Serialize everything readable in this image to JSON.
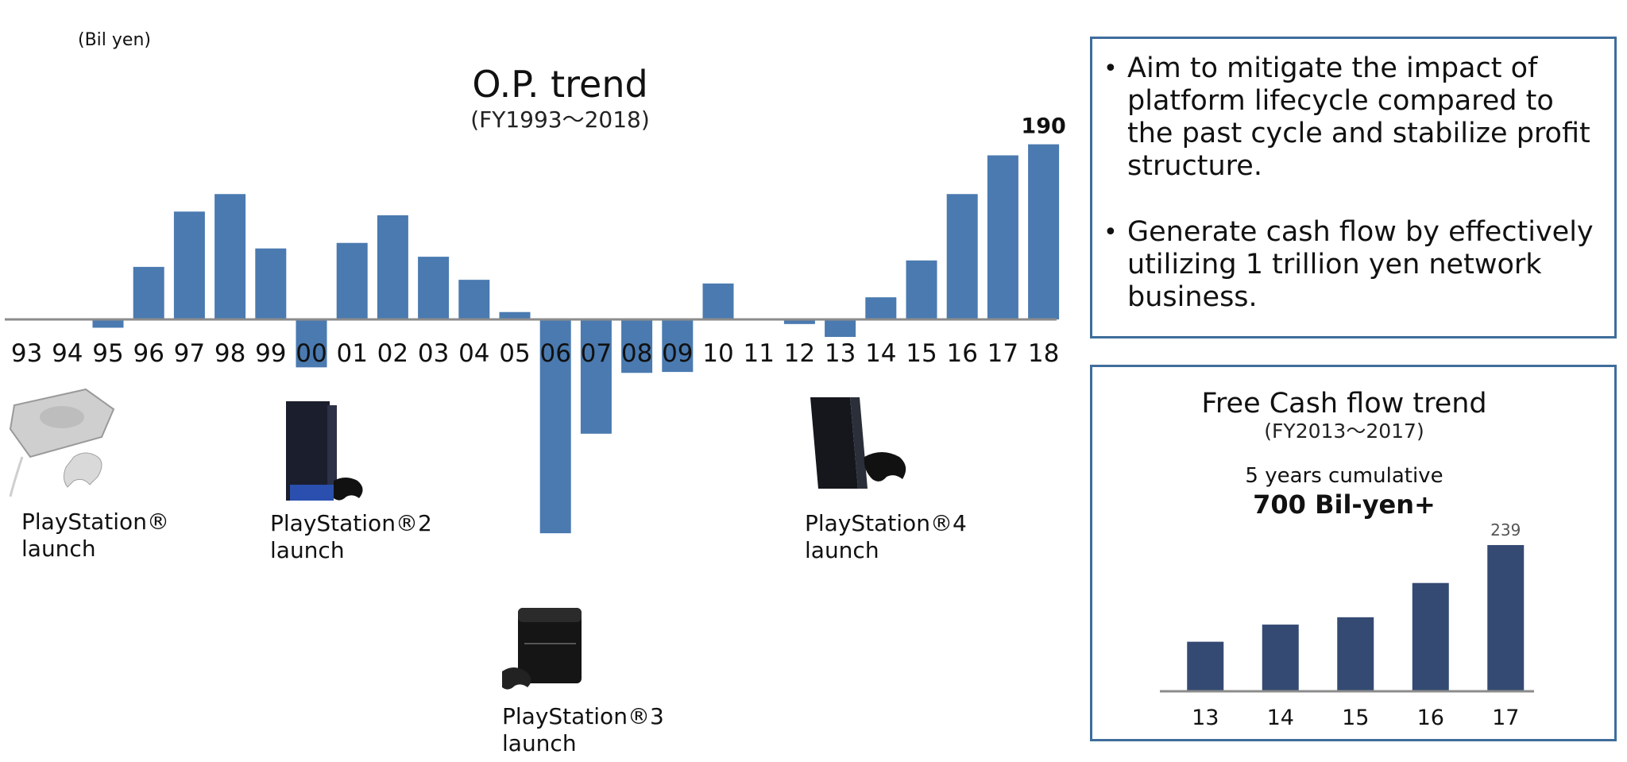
{
  "unit_label": "(Bil yen)",
  "chart_data": [
    {
      "type": "bar",
      "title": "O.P. trend",
      "subtitle": "(FY1993～2018)",
      "ylabel": "(Bil yen)",
      "categories": [
        "93",
        "94",
        "95",
        "96",
        "97",
        "98",
        "99",
        "00",
        "01",
        "02",
        "03",
        "04",
        "05",
        "06",
        "07",
        "08",
        "09",
        "10",
        "11",
        "12",
        "13",
        "14",
        "15",
        "16",
        "17",
        "18"
      ],
      "values": [
        0,
        -1,
        -9,
        57,
        117,
        136,
        77,
        -52,
        83,
        113,
        68,
        43,
        8,
        -232,
        -124,
        -58,
        -57,
        39,
        1,
        -5,
        -19,
        24,
        64,
        136,
        178,
        190
      ],
      "data_labels": [
        {
          "category": "18",
          "text": "190"
        }
      ],
      "ylim": [
        -240,
        200
      ],
      "highlighted_categories": [
        "00",
        "06",
        "07",
        "08",
        "09"
      ],
      "bar_color": "#4a7ab0",
      "grid": false
    },
    {
      "type": "bar",
      "title": "Free Cash flow trend",
      "subtitle": "(FY2013～2017)",
      "categories": [
        "13",
        "14",
        "15",
        "16",
        "17"
      ],
      "values": [
        81,
        109,
        121,
        177,
        239
      ],
      "data_labels": [
        {
          "category": "17",
          "text": "239"
        }
      ],
      "ylim": [
        0,
        260
      ],
      "bar_color": "#344a73",
      "grid": false
    }
  ],
  "fcf_note": {
    "line1": "5 years cumulative",
    "line2": "700 Bil-yen+"
  },
  "bullets": [
    "Aim to mitigate the impact of platform lifecycle compared to the past cycle and stabilize profit structure.",
    "Generate cash flow by effectively utilizing 1 trillion yen network business."
  ],
  "consoles": [
    {
      "label": "PlayStation®\nlaunch",
      "icon": "ps1-console-icon"
    },
    {
      "label": "PlayStation®2\nlaunch",
      "icon": "ps2-console-icon"
    },
    {
      "label": "PlayStation®3\nlaunch",
      "icon": "ps3-console-icon"
    },
    {
      "label": "PlayStation®4\nlaunch",
      "icon": "ps4-console-icon"
    }
  ],
  "colors": {
    "box_border": "#3f6d9b",
    "op_bar": "#4a7ab0",
    "fcf_bar": "#344a73",
    "axis": "#8c8c8c"
  }
}
